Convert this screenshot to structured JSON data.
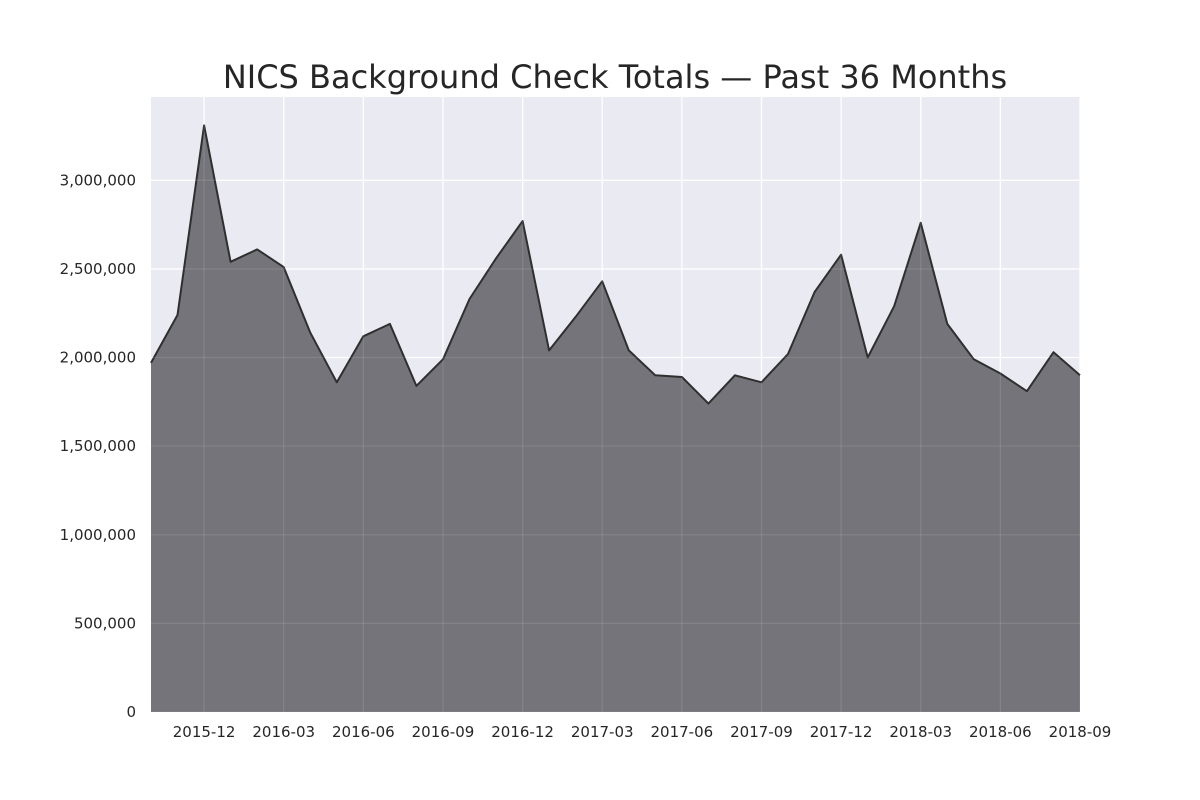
{
  "chart_data": {
    "type": "area",
    "title": "NICS Background Check Totals — Past 36 Months",
    "xlabel": "",
    "ylabel": "",
    "x": [
      "2015-10",
      "2015-11",
      "2015-12",
      "2016-01",
      "2016-02",
      "2016-03",
      "2016-04",
      "2016-05",
      "2016-06",
      "2016-07",
      "2016-08",
      "2016-09",
      "2016-10",
      "2016-11",
      "2016-12",
      "2017-01",
      "2017-02",
      "2017-03",
      "2017-04",
      "2017-05",
      "2017-06",
      "2017-07",
      "2017-08",
      "2017-09",
      "2017-10",
      "2017-11",
      "2017-12",
      "2018-01",
      "2018-02",
      "2018-03",
      "2018-04",
      "2018-05",
      "2018-06",
      "2018-07",
      "2018-08",
      "2018-09"
    ],
    "values": [
      1970000,
      2240000,
      3310000,
      2540000,
      2610000,
      2510000,
      2140000,
      1860000,
      2120000,
      2190000,
      1840000,
      1990000,
      2330000,
      2560000,
      2770000,
      2040000,
      2230000,
      2430000,
      2040000,
      1900000,
      1890000,
      1740000,
      1900000,
      1860000,
      2020000,
      2370000,
      2580000,
      2000000,
      2290000,
      2760000,
      2190000,
      1990000,
      1910000,
      1810000,
      2030000,
      1900000
    ],
    "x_tick_labels": [
      "2015-12",
      "2016-03",
      "2016-06",
      "2016-09",
      "2016-12",
      "2017-03",
      "2017-06",
      "2017-09",
      "2017-12",
      "2018-03",
      "2018-06",
      "2018-09"
    ],
    "y_ticks": [
      0,
      500000,
      1000000,
      1500000,
      2000000,
      2500000,
      3000000
    ],
    "y_tick_labels": [
      "0",
      "500,000",
      "1,000,000",
      "1,500,000",
      "2,000,000",
      "2,500,000",
      "3,000,000"
    ],
    "ylim": [
      0,
      3470000
    ],
    "grid": true,
    "colors": {
      "area_fill": "#75747a",
      "line": "#2f2f2f",
      "plot_background": "#eaeaf2",
      "grid": "#ffffff"
    }
  }
}
